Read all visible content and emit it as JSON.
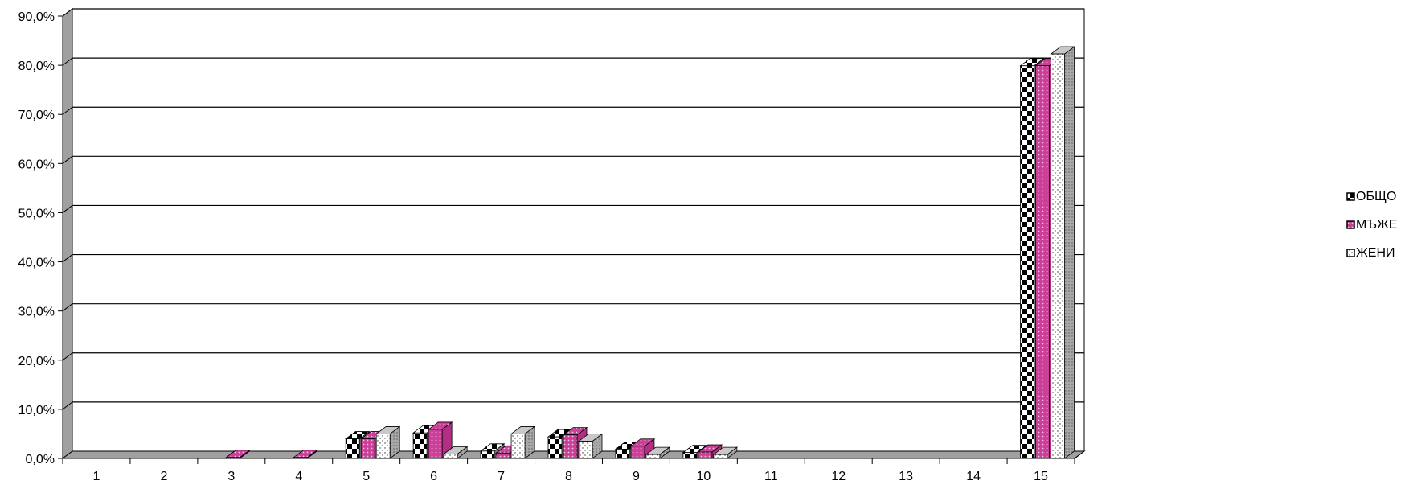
{
  "chart_data": {
    "type": "bar",
    "style": "3d-clustered-column",
    "categories": [
      "1",
      "2",
      "3",
      "4",
      "5",
      "6",
      "7",
      "8",
      "9",
      "10",
      "11",
      "12",
      "13",
      "14",
      "15"
    ],
    "series": [
      {
        "name": "ОБЩО",
        "pattern": "checker",
        "color": "#000000",
        "values": [
          0.0,
          0.0,
          0.0,
          0.0,
          4.0,
          5.2,
          1.5,
          4.4,
          1.9,
          1.2,
          0.0,
          0.0,
          0.0,
          0.0,
          79.9
        ]
      },
      {
        "name": "МЪЖЕ",
        "pattern": "dots-pink",
        "color": "#cc3f99",
        "values": [
          0.0,
          0.0,
          0.2,
          0.2,
          4.0,
          5.9,
          1.1,
          4.8,
          2.5,
          1.3,
          0.0,
          0.0,
          0.0,
          0.0,
          79.9
        ]
      },
      {
        "name": "ЖЕНИ",
        "pattern": "dots-light",
        "color": "#ffffff",
        "values": [
          0.0,
          0.0,
          0.0,
          0.0,
          5.0,
          0.9,
          5.0,
          3.5,
          0.8,
          0.8,
          0.0,
          0.0,
          0.0,
          0.0,
          82.3
        ]
      }
    ],
    "ytick_labels": [
      "0,0%",
      "10,0%",
      "20,0%",
      "30,0%",
      "40,0%",
      "50,0%",
      "60,0%",
      "70,0%",
      "80,0%",
      "90,0%"
    ],
    "ylim": [
      0,
      90
    ],
    "grid": true,
    "legend_position": "right"
  }
}
